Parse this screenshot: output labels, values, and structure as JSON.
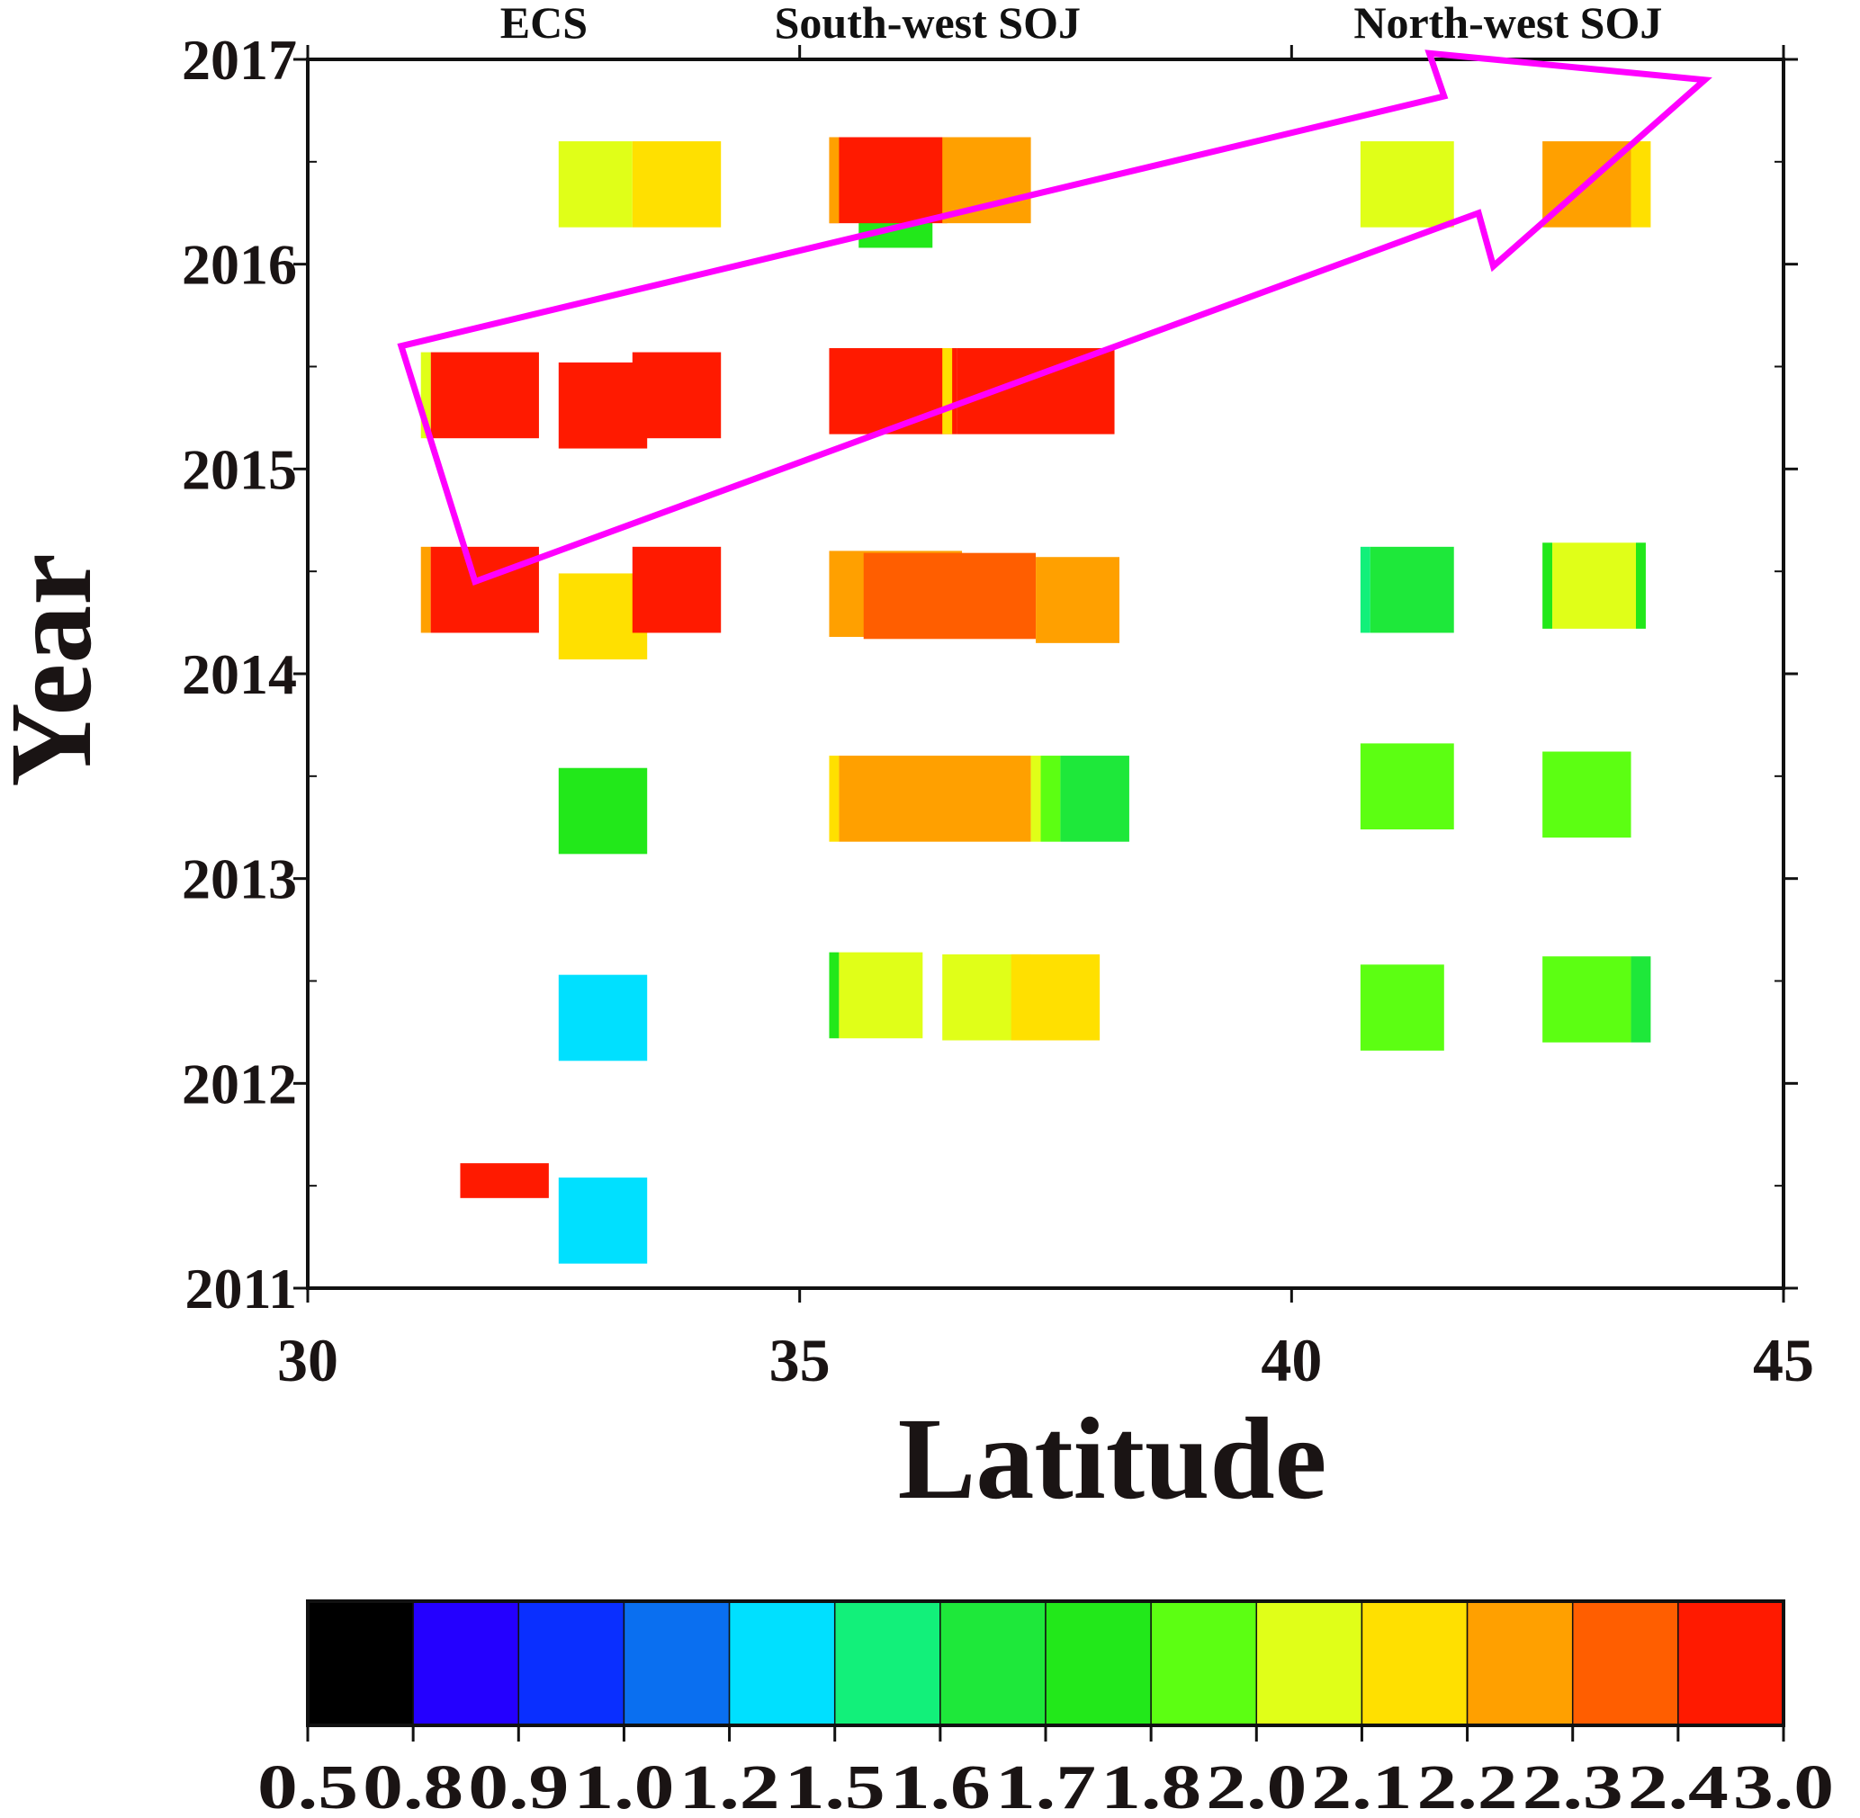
{
  "chart_data": {
    "type": "heatmap",
    "title": "",
    "xlabel": "Latitude",
    "ylabel": "Year",
    "xlim": [
      30,
      45
    ],
    "ylim": [
      2011,
      2017
    ],
    "x_ticks": [
      "30",
      "35",
      "40",
      "45"
    ],
    "y_ticks": [
      "2011",
      "2012",
      "2013",
      "2014",
      "2015",
      "2016",
      "2017"
    ],
    "region_labels": [
      {
        "text": "ECS",
        "lat": 32.4
      },
      {
        "text": "South-west SOJ",
        "lat": 36.3
      },
      {
        "text": "North-west SOJ",
        "lat": 42.2
      }
    ],
    "colorbar": {
      "levels": [
        "0.5",
        "0.8",
        "0.9",
        "1.0",
        "1.2",
        "1.5",
        "1.6",
        "1.7",
        "1.8",
        "2.0",
        "2.1",
        "2.2",
        "2.3",
        "2.4",
        "3.0"
      ],
      "colors": [
        "#000000",
        "#2400ff",
        "#0a2fff",
        "#0a6ff0",
        "#00e0ff",
        "#12f07a",
        "#1ee83a",
        "#22e81a",
        "#5cff12",
        "#e0ff18",
        "#ffe000",
        "#ffa000",
        "#ff5e00",
        "#ff1a00"
      ]
    },
    "cells": [
      {
        "lat0": 31.25,
        "lat1": 32.35,
        "year0": 2015.15,
        "year1": 2015.57,
        "color": "#ff1a00"
      },
      {
        "lat0": 31.15,
        "lat1": 31.25,
        "year0": 2015.15,
        "year1": 2015.57,
        "color": "#e0ff18"
      },
      {
        "lat0": 32.55,
        "lat1": 33.45,
        "year0": 2015.1,
        "year1": 2015.52,
        "color": "#ff1a00"
      },
      {
        "lat0": 33.3,
        "lat1": 34.2,
        "year0": 2015.15,
        "year1": 2015.57,
        "color": "#ff1a00"
      },
      {
        "lat0": 35.3,
        "lat1": 36.6,
        "year0": 2015.17,
        "year1": 2015.59,
        "color": "#ff1a00"
      },
      {
        "lat0": 36.45,
        "lat1": 36.55,
        "year0": 2015.17,
        "year1": 2015.59,
        "color": "#ffe000"
      },
      {
        "lat0": 36.6,
        "lat1": 38.2,
        "year0": 2015.17,
        "year1": 2015.59,
        "color": "#ff1a00"
      },
      {
        "lat0": 32.55,
        "lat1": 33.3,
        "year0": 2016.18,
        "year1": 2016.6,
        "color": "#e0ff18"
      },
      {
        "lat0": 33.3,
        "lat1": 34.2,
        "year0": 2016.18,
        "year1": 2016.6,
        "color": "#ffe000"
      },
      {
        "lat0": 35.6,
        "lat1": 36.35,
        "year0": 2016.08,
        "year1": 2016.28,
        "color": "#22e81a"
      },
      {
        "lat0": 35.3,
        "lat1": 36.5,
        "year0": 2016.2,
        "year1": 2016.62,
        "color": "#ff1a00"
      },
      {
        "lat0": 35.3,
        "lat1": 35.4,
        "year0": 2016.2,
        "year1": 2016.62,
        "color": "#ffa000"
      },
      {
        "lat0": 36.45,
        "lat1": 37.35,
        "year0": 2016.2,
        "year1": 2016.62,
        "color": "#ffa000"
      },
      {
        "lat0": 40.7,
        "lat1": 41.65,
        "year0": 2016.18,
        "year1": 2016.6,
        "color": "#e0ff18"
      },
      {
        "lat0": 42.55,
        "lat1": 43.45,
        "year0": 2016.18,
        "year1": 2016.6,
        "color": "#ffa000"
      },
      {
        "lat0": 43.45,
        "lat1": 43.65,
        "year0": 2016.18,
        "year1": 2016.6,
        "color": "#ffe000"
      },
      {
        "lat0": 31.15,
        "lat1": 31.25,
        "year0": 2014.2,
        "year1": 2014.62,
        "color": "#ffa000"
      },
      {
        "lat0": 31.25,
        "lat1": 32.35,
        "year0": 2014.2,
        "year1": 2014.62,
        "color": "#ff1a00"
      },
      {
        "lat0": 32.55,
        "lat1": 33.45,
        "year0": 2014.07,
        "year1": 2014.49,
        "color": "#ffe000"
      },
      {
        "lat0": 33.3,
        "lat1": 34.2,
        "year0": 2014.2,
        "year1": 2014.62,
        "color": "#ff1a00"
      },
      {
        "lat0": 35.3,
        "lat1": 36.65,
        "year0": 2014.18,
        "year1": 2014.6,
        "color": "#ffa000"
      },
      {
        "lat0": 35.65,
        "lat1": 37.4,
        "year0": 2014.17,
        "year1": 2014.59,
        "color": "#ff5e00"
      },
      {
        "lat0": 37.4,
        "lat1": 38.25,
        "year0": 2014.15,
        "year1": 2014.57,
        "color": "#ffa000"
      },
      {
        "lat0": 40.7,
        "lat1": 40.8,
        "year0": 2014.2,
        "year1": 2014.62,
        "color": "#12f07a"
      },
      {
        "lat0": 40.8,
        "lat1": 41.65,
        "year0": 2014.2,
        "year1": 2014.62,
        "color": "#1ee83a"
      },
      {
        "lat0": 42.55,
        "lat1": 42.65,
        "year0": 2014.22,
        "year1": 2014.64,
        "color": "#22e81a"
      },
      {
        "lat0": 42.65,
        "lat1": 43.5,
        "year0": 2014.22,
        "year1": 2014.64,
        "color": "#e0ff18"
      },
      {
        "lat0": 43.5,
        "lat1": 43.6,
        "year0": 2014.22,
        "year1": 2014.64,
        "color": "#22e81a"
      },
      {
        "lat0": 32.55,
        "lat1": 33.45,
        "year0": 2013.12,
        "year1": 2013.54,
        "color": "#22e81a"
      },
      {
        "lat0": 35.3,
        "lat1": 35.4,
        "year0": 2013.18,
        "year1": 2013.6,
        "color": "#ffe000"
      },
      {
        "lat0": 35.4,
        "lat1": 37.35,
        "year0": 2013.18,
        "year1": 2013.6,
        "color": "#ffa000"
      },
      {
        "lat0": 37.35,
        "lat1": 37.45,
        "year0": 2013.18,
        "year1": 2013.6,
        "color": "#e0ff18"
      },
      {
        "lat0": 37.45,
        "lat1": 37.65,
        "year0": 2013.18,
        "year1": 2013.6,
        "color": "#5cff12"
      },
      {
        "lat0": 37.65,
        "lat1": 38.35,
        "year0": 2013.18,
        "year1": 2013.6,
        "color": "#1ee83a"
      },
      {
        "lat0": 40.7,
        "lat1": 41.65,
        "year0": 2013.24,
        "year1": 2013.66,
        "color": "#5cff12"
      },
      {
        "lat0": 42.55,
        "lat1": 43.45,
        "year0": 2013.2,
        "year1": 2013.62,
        "color": "#5cff12"
      },
      {
        "lat0": 32.55,
        "lat1": 33.45,
        "year0": 2012.11,
        "year1": 2012.53,
        "color": "#00e0ff"
      },
      {
        "lat0": 35.3,
        "lat1": 35.4,
        "year0": 2012.22,
        "year1": 2012.64,
        "color": "#22e81a"
      },
      {
        "lat0": 35.4,
        "lat1": 36.25,
        "year0": 2012.22,
        "year1": 2012.64,
        "color": "#e0ff18"
      },
      {
        "lat0": 36.45,
        "lat1": 37.35,
        "year0": 2012.21,
        "year1": 2012.63,
        "color": "#e0ff18"
      },
      {
        "lat0": 37.15,
        "lat1": 38.05,
        "year0": 2012.21,
        "year1": 2012.63,
        "color": "#ffe000"
      },
      {
        "lat0": 40.7,
        "lat1": 41.55,
        "year0": 2012.16,
        "year1": 2012.58,
        "color": "#5cff12"
      },
      {
        "lat0": 42.55,
        "lat1": 43.45,
        "year0": 2012.2,
        "year1": 2012.62,
        "color": "#5cff12"
      },
      {
        "lat0": 43.45,
        "lat1": 43.65,
        "year0": 2012.2,
        "year1": 2012.62,
        "color": "#1ee83a"
      },
      {
        "lat0": 31.55,
        "lat1": 32.45,
        "year0": 2011.44,
        "year1": 2011.61,
        "color": "#ff1a00"
      },
      {
        "lat0": 32.55,
        "lat1": 33.45,
        "year0": 2011.12,
        "year1": 2011.54,
        "color": "#00e0ff"
      }
    ],
    "arrow_annotation": {
      "color": "#ff00ff",
      "points": [
        [
          30.95,
          2015.6
        ],
        [
          41.55,
          2016.82
        ],
        [
          41.4,
          2017.03
        ],
        [
          44.2,
          2016.9
        ],
        [
          42.05,
          2015.99
        ],
        [
          41.9,
          2016.25
        ],
        [
          31.7,
          2014.45
        ]
      ]
    }
  }
}
